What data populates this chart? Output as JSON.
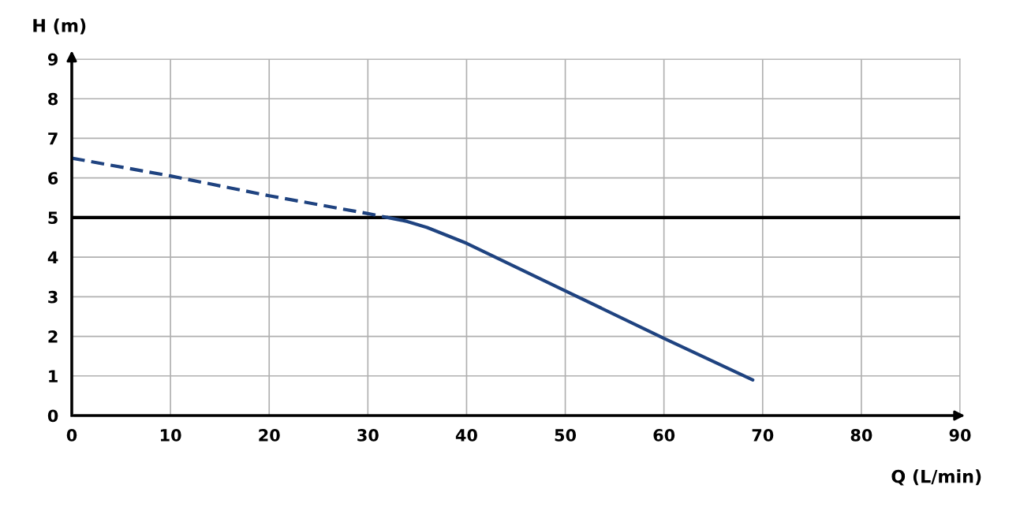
{
  "chart_data": {
    "type": "line",
    "xlabel": "Q (L/min)",
    "ylabel": "H (m)",
    "series": [
      {
        "color": "#1f4380",
        "line_style": "dashed",
        "x": [
          0,
          10,
          20,
          30,
          32
        ],
        "values": [
          6.5,
          6.05,
          5.55,
          5.1,
          5.0
        ]
      },
      {
        "color": "#1f4380",
        "line_style": "solid",
        "x": [
          32,
          34,
          36,
          38,
          40,
          50,
          60,
          69
        ],
        "values": [
          5.0,
          4.9,
          4.75,
          4.55,
          4.35,
          3.15,
          1.95,
          0.9
        ]
      }
    ],
    "xlim": [
      0,
      90
    ],
    "xticks": [
      0,
      10,
      20,
      30,
      40,
      50,
      60,
      70,
      80,
      90
    ],
    "ylim": [
      0,
      9
    ],
    "yticks": [
      0,
      1,
      2,
      3,
      4,
      5,
      6,
      7,
      8,
      9
    ],
    "ref_lines": [
      {
        "axis": "y",
        "value": 5,
        "color": "#000000",
        "line_style": "solid"
      }
    ],
    "grid": true,
    "marker": "none"
  }
}
